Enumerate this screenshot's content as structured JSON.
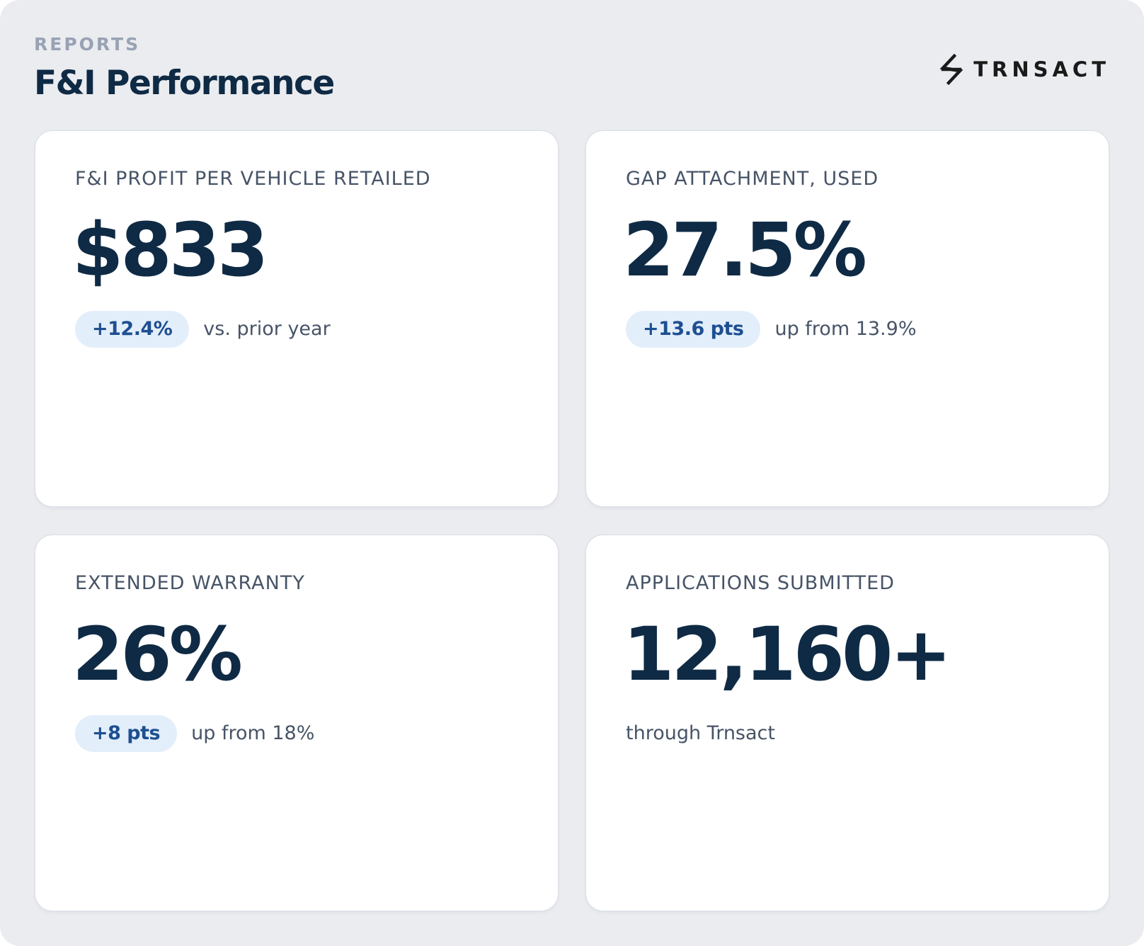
{
  "header": {
    "eyebrow": "REPORTS",
    "title": "F&I Performance"
  },
  "brand": {
    "name": "TRNSACT",
    "logo_icon": "trnsact-logo-icon"
  },
  "colors": {
    "background": "#eaecf0",
    "card": "#ffffff",
    "primary_text": "#0f2a44",
    "secondary_text": "#475467",
    "eyebrow": "#98a2b3",
    "pill_background": "#e3eefb",
    "pill_text": "#1d4f91"
  },
  "metrics": [
    {
      "label": "F&I PROFIT PER VEHICLE RETAILED",
      "value": "$833",
      "delta": "+12.4%",
      "note": "vs. prior year"
    },
    {
      "label": "GAP ATTACHMENT, USED",
      "value": "27.5%",
      "delta": "+13.6 pts",
      "note": "up from 13.9%"
    },
    {
      "label": "EXTENDED WARRANTY",
      "value": "26%",
      "delta": "+8 pts",
      "note": "up from 18%"
    },
    {
      "label": "APPLICATIONS SUBMITTED",
      "value": "12,160+",
      "note": "through Trnsact"
    }
  ]
}
